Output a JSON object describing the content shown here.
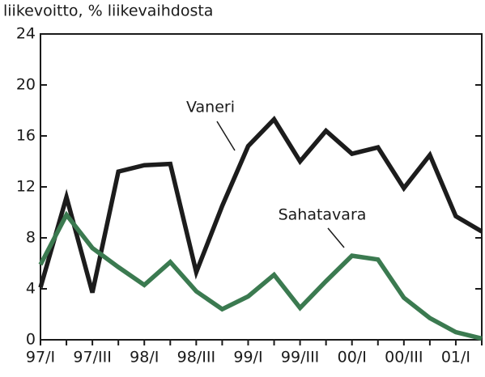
{
  "chart_data": {
    "type": "line",
    "y_label": "liikevoitto, % liikevaihdosta",
    "categories": [
      "97/I",
      null,
      "97/III",
      null,
      "98/I",
      null,
      "98/III",
      null,
      "99/I",
      null,
      "99/III",
      null,
      "00/I",
      null,
      "00/III",
      null,
      "01/I",
      null
    ],
    "series": [
      {
        "name": "Vaneri",
        "color": "#1c1c1c",
        "values": [
          4.1,
          11.2,
          3.7,
          13.2,
          13.7,
          13.8,
          5.3,
          10.5,
          15.2,
          17.3,
          14.0,
          16.4,
          14.6,
          15.1,
          11.9,
          14.5,
          9.7,
          8.5
        ]
      },
      {
        "name": "Sahatavara",
        "color": "#3b7a50",
        "values": [
          5.9,
          9.8,
          7.2,
          5.7,
          4.3,
          6.1,
          3.8,
          2.4,
          3.4,
          5.1,
          2.5,
          4.6,
          6.6,
          6.3,
          3.3,
          1.7,
          0.6,
          0.1
        ]
      }
    ],
    "ylim": [
      0,
      24
    ],
    "yticks": [
      0,
      4,
      8,
      12,
      16,
      20,
      24
    ]
  }
}
